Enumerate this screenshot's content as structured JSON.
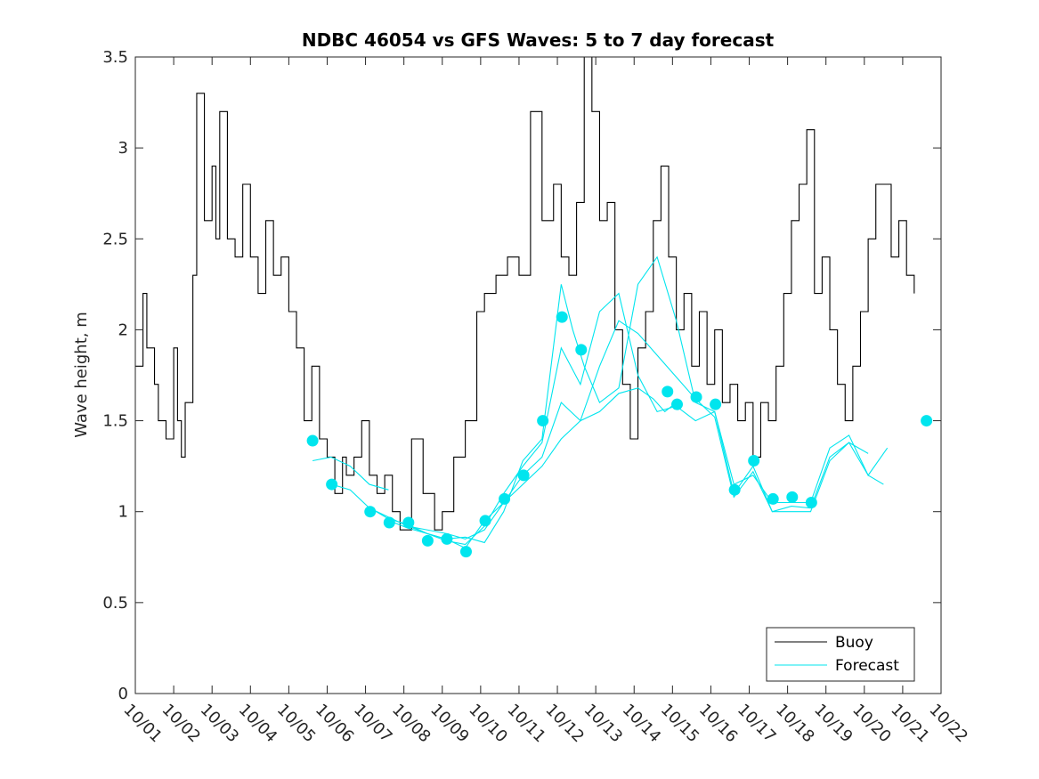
{
  "chart_data": {
    "type": "line",
    "title": "NDBC 46054 vs GFS Waves: 5 to 7 day forecast",
    "xlabel": "",
    "ylabel": "Wave height, m",
    "xlim": [
      0,
      21
    ],
    "ylim": [
      0,
      3.5
    ],
    "yticks": [
      0,
      0.5,
      1,
      1.5,
      2,
      2.5,
      3,
      3.5
    ],
    "ytick_labels": [
      "0",
      "0.5",
      "1",
      "1.5",
      "2",
      "2.5",
      "3",
      "3.5"
    ],
    "xtick_labels": [
      "10/01",
      "10/02",
      "10/03",
      "10/04",
      "10/05",
      "10/06",
      "10/07",
      "10/08",
      "10/09",
      "10/10",
      "10/11",
      "10/12",
      "10/13",
      "10/14",
      "10/15",
      "10/16",
      "10/17",
      "10/18",
      "10/19",
      "10/20",
      "10/21",
      "10/22"
    ],
    "x_unit": "days since 10/01",
    "legend": {
      "position": "bottom-right",
      "entries": [
        {
          "name": "Buoy",
          "color": "#000000"
        },
        {
          "name": "Forecast",
          "color": "#00e5ee"
        }
      ]
    },
    "colors": {
      "buoy": "#000000",
      "forecast": "#00e5ee",
      "axis": "#262626"
    },
    "series": [
      {
        "name": "Buoy",
        "x": [
          0,
          0.2,
          0.3,
          0.5,
          0.6,
          0.8,
          1.0,
          1.1,
          1.2,
          1.3,
          1.5,
          1.6,
          1.8,
          2.0,
          2.1,
          2.2,
          2.4,
          2.6,
          2.8,
          3.0,
          3.2,
          3.4,
          3.6,
          3.8,
          4.0,
          4.2,
          4.4,
          4.6,
          4.8,
          5.0,
          5.2,
          5.4,
          5.5,
          5.7,
          5.9,
          6.1,
          6.3,
          6.5,
          6.7,
          6.9,
          7.2,
          7.5,
          7.8,
          8.0,
          8.3,
          8.6,
          8.9,
          9.1,
          9.4,
          9.7,
          10.0,
          10.3,
          10.6,
          10.9,
          11.1,
          11.3,
          11.5,
          11.7,
          11.9,
          12.1,
          12.3,
          12.5,
          12.7,
          12.9,
          13.1,
          13.3,
          13.5,
          13.7,
          13.9,
          14.1,
          14.3,
          14.5,
          14.7,
          14.9,
          15.1,
          15.3,
          15.5,
          15.7,
          15.9,
          16.1,
          16.3,
          16.5,
          16.7,
          16.9,
          17.1,
          17.3,
          17.5,
          17.7,
          17.9,
          18.1,
          18.3,
          18.5,
          18.7,
          18.9,
          19.1,
          19.3,
          19.5,
          19.7,
          19.9,
          20.1,
          20.3
        ],
        "values": [
          1.8,
          2.2,
          1.9,
          1.7,
          1.5,
          1.4,
          1.9,
          1.5,
          1.3,
          1.6,
          2.3,
          3.3,
          2.6,
          2.9,
          2.5,
          3.2,
          2.5,
          2.4,
          2.8,
          2.4,
          2.2,
          2.6,
          2.3,
          2.4,
          2.1,
          1.9,
          1.5,
          1.8,
          1.4,
          1.3,
          1.1,
          1.3,
          1.2,
          1.3,
          1.5,
          1.2,
          1.1,
          1.2,
          1.0,
          0.9,
          1.4,
          1.1,
          0.9,
          1.0,
          1.3,
          1.5,
          2.1,
          2.2,
          2.3,
          2.4,
          2.3,
          3.2,
          2.6,
          2.8,
          2.4,
          2.3,
          2.7,
          3.5,
          3.2,
          2.6,
          2.7,
          2.0,
          1.7,
          1.4,
          1.9,
          2.1,
          2.6,
          2.9,
          2.4,
          2.0,
          2.2,
          1.8,
          2.1,
          1.7,
          2.0,
          1.6,
          1.7,
          1.5,
          1.6,
          1.3,
          1.6,
          1.5,
          1.8,
          2.2,
          2.6,
          2.8,
          3.1,
          2.2,
          2.4,
          2.0,
          1.7,
          1.5,
          1.8,
          2.1,
          2.5,
          2.8,
          2.8,
          2.4,
          2.6,
          2.3,
          2.2
        ]
      },
      {
        "name": "Forecast",
        "dots": [
          {
            "x": 4.62,
            "y": 1.39
          },
          {
            "x": 5.12,
            "y": 1.15
          },
          {
            "x": 6.12,
            "y": 1.0
          },
          {
            "x": 6.62,
            "y": 0.94
          },
          {
            "x": 7.12,
            "y": 0.94
          },
          {
            "x": 7.62,
            "y": 0.84
          },
          {
            "x": 8.12,
            "y": 0.85
          },
          {
            "x": 8.62,
            "y": 0.78
          },
          {
            "x": 9.12,
            "y": 0.95
          },
          {
            "x": 9.62,
            "y": 1.07
          },
          {
            "x": 10.12,
            "y": 1.2
          },
          {
            "x": 10.62,
            "y": 1.5
          },
          {
            "x": 11.12,
            "y": 2.07
          },
          {
            "x": 11.62,
            "y": 1.89
          },
          {
            "x": 13.87,
            "y": 1.66
          },
          {
            "x": 14.12,
            "y": 1.59
          },
          {
            "x": 14.62,
            "y": 1.63
          },
          {
            "x": 15.12,
            "y": 1.59
          },
          {
            "x": 15.62,
            "y": 1.12
          },
          {
            "x": 16.12,
            "y": 1.28
          },
          {
            "x": 16.62,
            "y": 1.07
          },
          {
            "x": 17.12,
            "y": 1.08
          },
          {
            "x": 17.62,
            "y": 1.05
          },
          {
            "x": 20.62,
            "y": 1.5
          }
        ],
        "lines": [
          {
            "x": [
              4.62,
              5.1,
              5.6,
              6.1,
              6.6
            ],
            "values": [
              1.28,
              1.3,
              1.25,
              1.15,
              1.12
            ]
          },
          {
            "x": [
              5.12,
              5.6,
              6.1,
              6.6,
              7.1,
              7.6,
              8.1,
              8.6,
              9.1,
              9.6,
              10.1,
              10.6,
              11.1,
              11.6,
              12.1,
              12.6,
              13.1,
              13.5,
              13.8,
              14.1
            ],
            "values": [
              1.15,
              1.12,
              1.02,
              0.97,
              0.92,
              0.9,
              0.88,
              0.85,
              0.9,
              1.05,
              1.15,
              1.25,
              1.4,
              1.5,
              1.55,
              1.65,
              1.68,
              1.62,
              1.55,
              1.6
            ]
          },
          {
            "x": [
              6.12,
              6.6,
              7.1,
              7.6,
              8.1,
              8.6,
              9.1,
              9.6,
              10.1,
              10.6,
              11.1,
              11.4,
              11.7,
              12.1,
              12.6,
              13.1,
              13.6,
              14.1,
              14.6,
              15.1,
              15.6,
              16.1,
              16.6,
              17.1,
              17.6,
              18.1,
              18.6,
              19.1,
              19.6
            ],
            "values": [
              1.02,
              0.96,
              0.93,
              0.88,
              0.85,
              0.86,
              0.83,
              1.0,
              1.28,
              1.4,
              2.25,
              2.0,
              1.8,
              1.6,
              1.68,
              2.25,
              2.4,
              2.05,
              1.6,
              1.55,
              1.15,
              1.2,
              1.05,
              1.05,
              1.05,
              1.35,
              1.42,
              1.2,
              1.35
            ]
          },
          {
            "x": [
              6.62,
              7.1,
              7.6,
              8.1,
              8.6,
              9.1,
              9.6,
              10.1,
              10.6,
              11.1,
              11.6,
              12.1,
              12.6,
              13.1,
              13.6,
              14.1,
              14.6,
              15.1,
              15.6,
              16.1,
              16.6,
              17.1,
              17.6,
              18.1,
              18.6,
              19.1
            ],
            "values": [
              0.95,
              0.91,
              0.88,
              0.84,
              0.82,
              0.92,
              1.1,
              1.25,
              1.38,
              1.9,
              1.7,
              2.1,
              2.2,
              1.75,
              1.55,
              1.58,
              1.5,
              1.55,
              1.1,
              1.25,
              1.0,
              1.03,
              1.02,
              1.3,
              1.38,
              1.32
            ]
          },
          {
            "x": [
              7.12,
              7.6,
              8.1,
              8.6,
              9.1,
              9.6,
              10.1,
              10.6,
              11.1,
              11.6,
              12.1,
              12.6,
              13.1,
              14.6,
              15.1,
              15.6,
              16.1,
              16.6,
              17.1,
              17.6,
              18.1,
              18.6,
              19.1,
              19.5
            ],
            "values": [
              0.92,
              0.88,
              0.85,
              0.8,
              0.95,
              1.05,
              1.2,
              1.3,
              1.6,
              1.5,
              1.8,
              2.05,
              1.98,
              1.62,
              1.52,
              1.08,
              1.22,
              1.0,
              1.0,
              1.0,
              1.28,
              1.38,
              1.2,
              1.15
            ]
          }
        ]
      }
    ]
  }
}
